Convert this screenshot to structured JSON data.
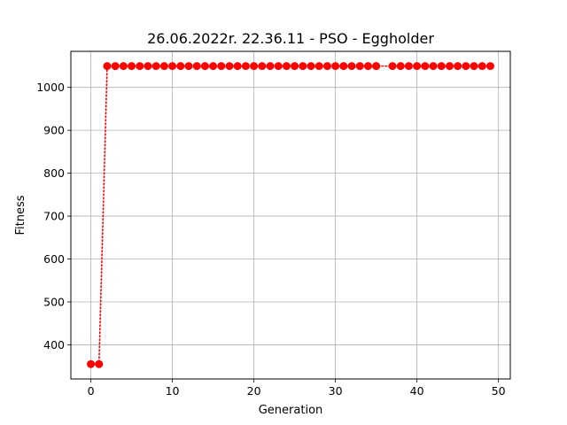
{
  "chart_data": {
    "type": "line",
    "title": "26.06.2022r. 22.36.11 - PSO - Eggholder",
    "xlabel": "Generation",
    "ylabel": "Fitness",
    "xlim": [
      -2.45,
      51.45
    ],
    "ylim": [
      320.4,
      1084.0
    ],
    "xticks": [
      0,
      10,
      20,
      30,
      40,
      50
    ],
    "yticks": [
      400,
      500,
      600,
      700,
      800,
      900,
      1000
    ],
    "grid": true,
    "series": [
      {
        "color": "#ff0000",
        "line_style": "dotted",
        "marker": "circle",
        "x": [
          0,
          1,
          2,
          3,
          4,
          5,
          6,
          7,
          8,
          9,
          10,
          11,
          12,
          13,
          14,
          15,
          16,
          17,
          18,
          19,
          20,
          21,
          22,
          23,
          24,
          25,
          26,
          27,
          28,
          29,
          30,
          31,
          32,
          33,
          34,
          35,
          35,
          37,
          38,
          39,
          40,
          41,
          42,
          43,
          44,
          45,
          46,
          47,
          48,
          49
        ],
        "y": [
          355.0,
          355.0,
          1049.7,
          1049.7,
          1049.7,
          1049.7,
          1049.7,
          1049.7,
          1049.7,
          1049.7,
          1049.7,
          1049.7,
          1049.7,
          1049.7,
          1049.7,
          1049.7,
          1049.7,
          1049.7,
          1049.7,
          1049.7,
          1049.7,
          1049.7,
          1049.7,
          1049.7,
          1049.7,
          1049.7,
          1049.7,
          1049.7,
          1049.7,
          1049.7,
          1049.7,
          1049.7,
          1049.7,
          1049.7,
          1049.7,
          1049.7,
          1049.7,
          1049.7,
          1049.7,
          1049.7,
          1049.7,
          1049.7,
          1049.7,
          1049.7,
          1049.7,
          1049.7,
          1049.7,
          1049.7,
          1049.7,
          1049.7
        ]
      }
    ]
  }
}
